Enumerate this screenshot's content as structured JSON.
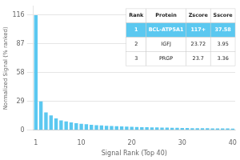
{
  "chart_data": {
    "type": "bar",
    "xlabel": "Signal Rank (Top 40)",
    "ylabel": "Normalized Signal (% ranked)",
    "categories": [
      "1",
      null,
      null,
      null,
      null,
      null,
      null,
      null,
      null,
      "10",
      null,
      null,
      null,
      null,
      null,
      null,
      null,
      null,
      null,
      "20",
      null,
      null,
      null,
      null,
      null,
      null,
      null,
      null,
      null,
      "30",
      null,
      null,
      null,
      null,
      null,
      null,
      null,
      null,
      null,
      "40"
    ],
    "values": [
      116,
      29,
      18,
      15,
      12,
      10,
      9,
      8,
      7,
      6.5,
      6,
      5.5,
      5,
      4.8,
      4.5,
      4.2,
      4,
      3.8,
      3.6,
      3.4,
      3.2,
      3.1,
      3.0,
      2.9,
      2.8,
      2.7,
      2.6,
      2.5,
      2.4,
      2.3,
      2.2,
      2.15,
      2.1,
      2.05,
      2.0,
      1.95,
      1.9,
      1.85,
      1.8,
      1.75
    ],
    "color": "#5bc8f0",
    "ylim": [
      0,
      125
    ],
    "yticks": [
      0,
      29,
      58,
      87,
      116
    ],
    "grid": true,
    "table": {
      "columns": [
        "Rank",
        "Protein",
        "Zscore",
        "Sscore"
      ],
      "rows": [
        [
          "1",
          "BCL-ATP5A1",
          "117+",
          "37.58"
        ],
        [
          "2",
          "IGFJ",
          "23.72",
          "3.95"
        ],
        [
          "3",
          "PRGP",
          "23.7",
          "3.36"
        ]
      ]
    }
  }
}
